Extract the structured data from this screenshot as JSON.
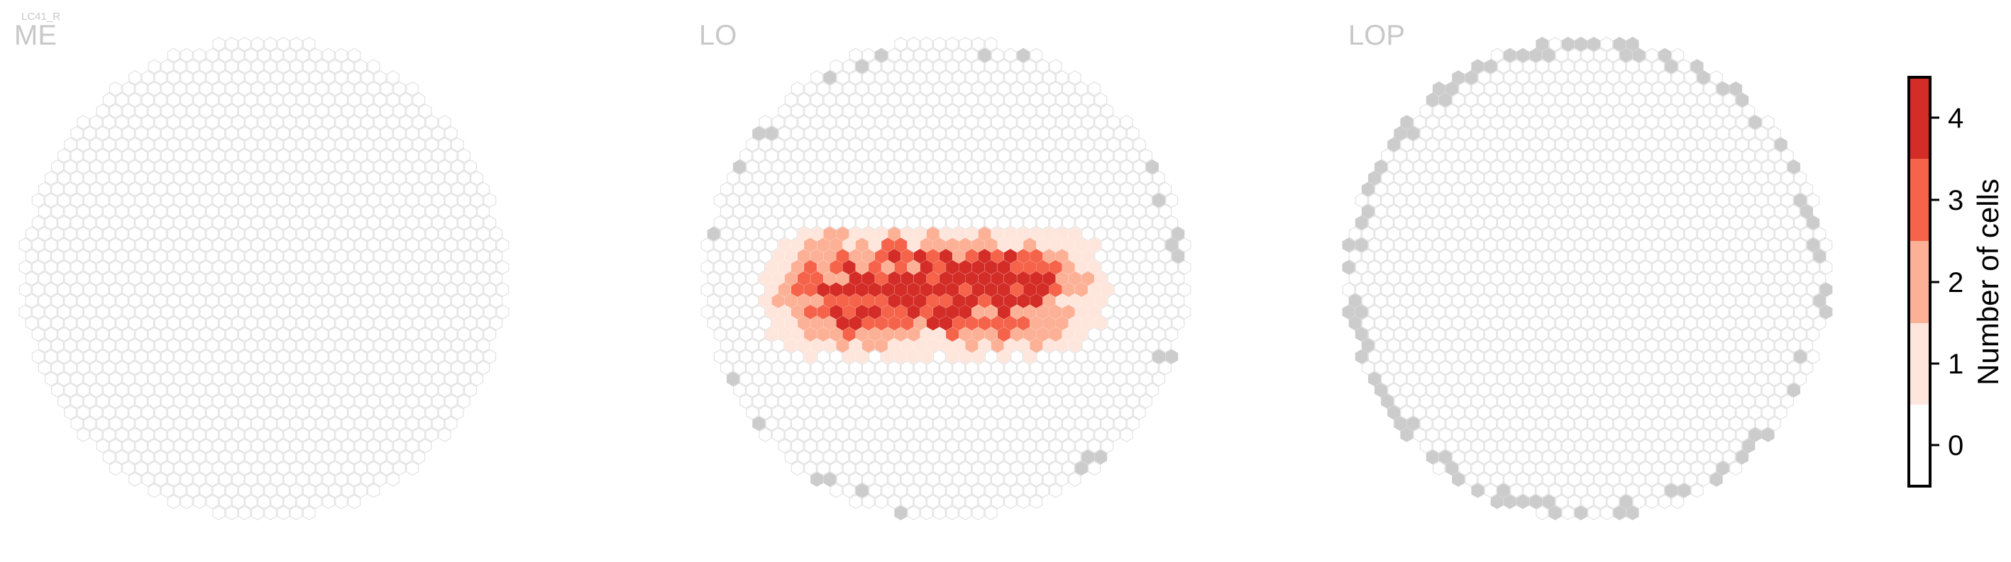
{
  "figure": {
    "cell_type_label": "LC41_R"
  },
  "colors": {
    "empty_stroke": "#e2e2e2",
    "empty_fill": "#ffffff",
    "boundary_fill": "#cccccc",
    "panel_label": "#c8c8c8"
  },
  "chart_data": {
    "type": "heatmap",
    "panels": [
      {
        "title": "ME",
        "boundary_positions": "none",
        "counts": "all 0"
      },
      {
        "title": "LO",
        "boundary_positions": "scattered around circumference",
        "counts": "band of nonzero columns across middle (values 1-4), max 4"
      },
      {
        "title": "LOP",
        "boundary_positions": "dense around left, lower and right edges",
        "counts": "all 0"
      }
    ],
    "colorbar": {
      "label": "Number of cells",
      "ticks": [
        0,
        1,
        2,
        3,
        4
      ],
      "range": [
        -0.5,
        4.5
      ],
      "colors": [
        "#ffffff",
        "#fee6dc",
        "#fcb196",
        "#f5634a",
        "#d42d27"
      ]
    }
  }
}
